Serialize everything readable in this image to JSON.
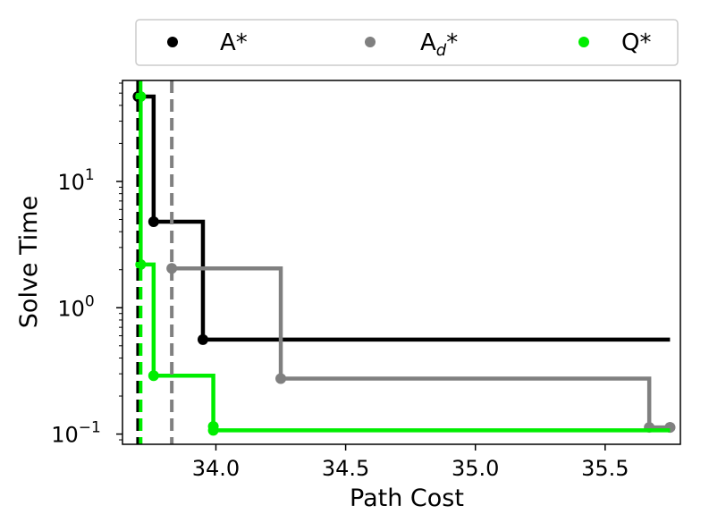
{
  "chart_data": {
    "type": "line",
    "xlabel": "Path Cost",
    "ylabel": "Solve Time",
    "xlim": [
      33.64,
      35.79
    ],
    "ylim": [
      0.083,
      63
    ],
    "yscale": "log",
    "grid": false,
    "legend_position": "top",
    "x_ticks": [
      {
        "value": 34.0,
        "label": "34.0"
      },
      {
        "value": 34.5,
        "label": "34.5"
      },
      {
        "value": 35.0,
        "label": "35.0"
      },
      {
        "value": 35.5,
        "label": "35.5"
      }
    ],
    "y_ticks": [
      {
        "value": 0.1,
        "base": "10",
        "exp": "−1"
      },
      {
        "value": 1,
        "base": "10",
        "exp": "0"
      },
      {
        "value": 10,
        "base": "10",
        "exp": "1"
      }
    ],
    "series": [
      {
        "name": "A*",
        "color": "#000000",
        "vline": 33.7,
        "points": [
          [
            33.7,
            47
          ],
          [
            33.76,
            4.8
          ],
          [
            33.95,
            0.56
          ]
        ],
        "end_x": 35.75,
        "end_marker": false
      },
      {
        "name": "A_d*",
        "color": "#808080",
        "vline": 33.83,
        "points": [
          [
            33.83,
            2.05
          ],
          [
            34.25,
            0.275
          ],
          [
            35.67,
            0.113
          ],
          [
            35.75,
            0.113
          ]
        ],
        "end_x": 35.75,
        "end_marker": true
      },
      {
        "name": "Q*",
        "color": "#00ee00",
        "vline": 33.71,
        "points": [
          [
            33.71,
            47
          ],
          [
            33.71,
            2.2
          ],
          [
            33.76,
            0.29
          ],
          [
            33.99,
            0.115
          ],
          [
            33.99,
            0.107
          ]
        ],
        "end_x": 35.75,
        "end_marker": false
      }
    ]
  },
  "legend": {
    "items": [
      {
        "base": "A",
        "sub": "",
        "star": "*",
        "color": "#000000"
      },
      {
        "base": "A",
        "sub": "d",
        "star": "*",
        "color": "#808080"
      },
      {
        "base": "Q",
        "sub": "",
        "star": "*",
        "color": "#00ee00"
      }
    ]
  }
}
